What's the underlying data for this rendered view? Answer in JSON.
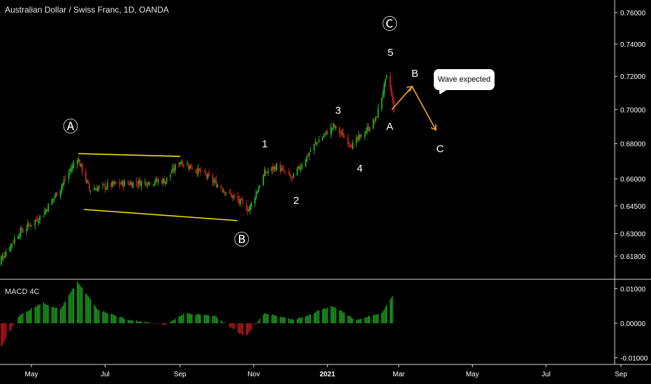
{
  "header": {
    "title": "Australian Dollar / Swiss Franc, 1D, OANDA"
  },
  "macd": {
    "title": "MACD 4C"
  },
  "callout": {
    "text": "Wave expected"
  },
  "colors": {
    "up": "#22b022",
    "down": "#d01c1c",
    "channel": "#f5e000",
    "projection": "#f5a623",
    "axis": "#d0d0d0"
  },
  "chart_data": [
    {
      "type": "candlestick",
      "title": "Australian Dollar / Swiss Franc, 1D, OANDA",
      "y_ticks": [
        0.76,
        0.74,
        0.72,
        0.7,
        0.68,
        0.66,
        0.645,
        0.63,
        0.618
      ],
      "y_tick_labels": [
        "0.76000",
        "0.74000",
        "0.72000",
        "0.70000",
        "0.68000",
        "0.66000",
        "0.64500",
        "0.63000",
        "0.61800"
      ],
      "x_tick_labels": [
        "May",
        "Jul",
        "Sep",
        "Nov",
        "2021",
        "Mar",
        "May",
        "Jul",
        "Sep"
      ],
      "close_path": [
        {
          "date": "2020-04-01",
          "close": 0.612
        },
        {
          "date": "2020-04-20",
          "close": 0.63
        },
        {
          "date": "2020-05-10",
          "close": 0.64
        },
        {
          "date": "2020-05-25",
          "close": 0.655
        },
        {
          "date": "2020-06-08",
          "close": 0.672
        },
        {
          "date": "2020-06-18",
          "close": 0.654
        },
        {
          "date": "2020-07-10",
          "close": 0.657
        },
        {
          "date": "2020-08-20",
          "close": 0.659
        },
        {
          "date": "2020-09-01",
          "close": 0.67
        },
        {
          "date": "2020-09-20",
          "close": 0.663
        },
        {
          "date": "2020-10-28",
          "close": 0.643
        },
        {
          "date": "2020-11-10",
          "close": 0.663
        },
        {
          "date": "2020-11-20",
          "close": 0.667
        },
        {
          "date": "2020-12-03",
          "close": 0.66
        },
        {
          "date": "2020-12-22",
          "close": 0.68
        },
        {
          "date": "2021-01-06",
          "close": 0.69
        },
        {
          "date": "2021-01-22",
          "close": 0.679
        },
        {
          "date": "2021-02-10",
          "close": 0.694
        },
        {
          "date": "2021-02-20",
          "close": 0.722
        },
        {
          "date": "2021-02-25",
          "close": 0.7
        }
      ],
      "wave_labels": [
        "Ⓐ",
        "Ⓑ",
        "Ⓒ",
        "1",
        "2",
        "3",
        "4",
        "5",
        "A",
        "B",
        "C"
      ],
      "annotations": [
        "Wave expected"
      ]
    },
    {
      "type": "bar",
      "title": "MACD 4C",
      "y_ticks": [
        0.01,
        0.0,
        -0.01
      ],
      "y_tick_labels": [
        "0.01000",
        "0.00000",
        "-0.01000"
      ],
      "histogram_path": [
        {
          "date": "2020-04-01",
          "value": -0.01
        },
        {
          "date": "2020-04-20",
          "value": 0.002
        },
        {
          "date": "2020-05-10",
          "value": 0.006
        },
        {
          "date": "2020-05-25",
          "value": 0.004
        },
        {
          "date": "2020-06-08",
          "value": 0.012
        },
        {
          "date": "2020-06-25",
          "value": 0.004
        },
        {
          "date": "2020-07-20",
          "value": 0.001
        },
        {
          "date": "2020-08-20",
          "value": -0.0005
        },
        {
          "date": "2020-09-05",
          "value": 0.003
        },
        {
          "date": "2020-09-30",
          "value": 0.002
        },
        {
          "date": "2020-10-25",
          "value": -0.004
        },
        {
          "date": "2020-11-10",
          "value": 0.003
        },
        {
          "date": "2020-12-05",
          "value": 0.001
        },
        {
          "date": "2021-01-05",
          "value": 0.005
        },
        {
          "date": "2021-01-25",
          "value": 0.001
        },
        {
          "date": "2021-02-15",
          "value": 0.003
        },
        {
          "date": "2021-02-24",
          "value": 0.008
        }
      ]
    }
  ]
}
